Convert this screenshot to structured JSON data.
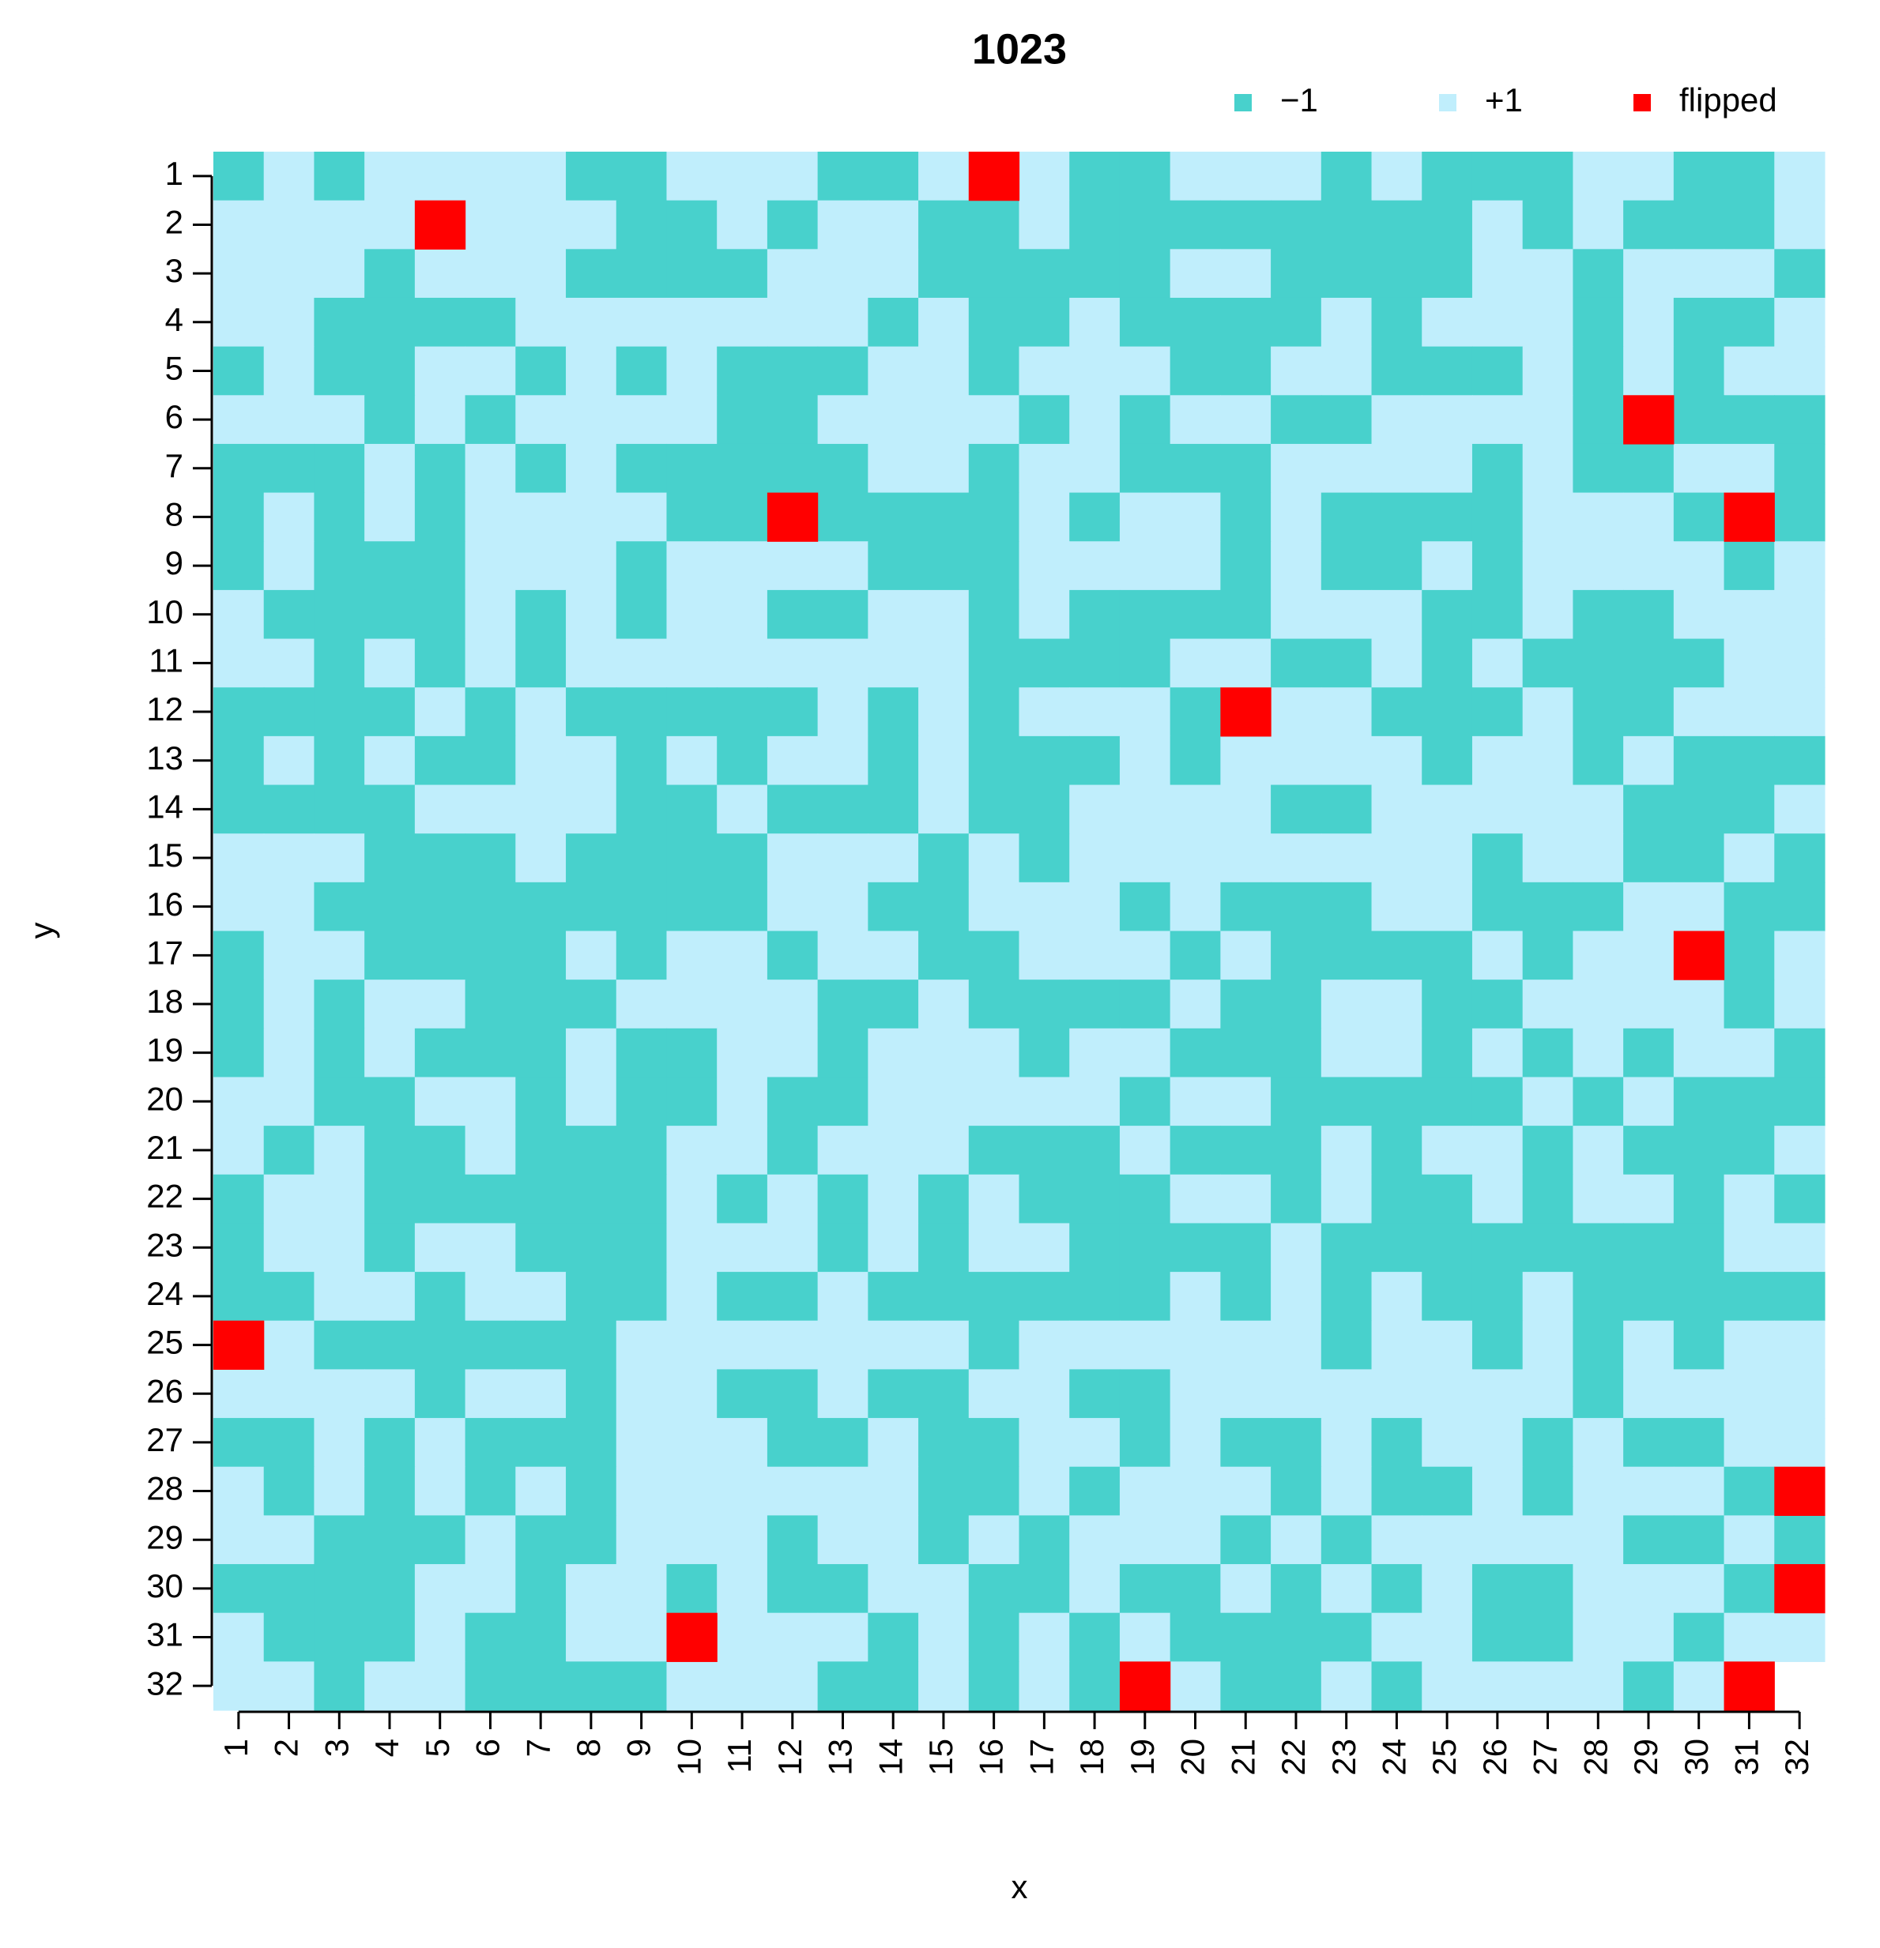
{
  "chart_data": {
    "type": "heatmap",
    "title": "1023",
    "x_label": "x",
    "y_label": "y",
    "x": [
      1,
      2,
      3,
      4,
      5,
      6,
      7,
      8,
      9,
      10,
      11,
      12,
      13,
      14,
      15,
      16,
      17,
      18,
      19,
      20,
      21,
      22,
      23,
      24,
      25,
      26,
      27,
      28,
      29,
      30,
      31,
      32
    ],
    "y": [
      1,
      2,
      3,
      4,
      5,
      6,
      7,
      8,
      9,
      10,
      11,
      12,
      13,
      14,
      15,
      16,
      17,
      18,
      19,
      20,
      21,
      22,
      23,
      24,
      25,
      26,
      27,
      28,
      29,
      30,
      31,
      32
    ],
    "xlim": [
      0.5,
      32.5
    ],
    "ylim": [
      32.5,
      0.5
    ],
    "xticks": [
      1,
      2,
      3,
      4,
      5,
      6,
      7,
      8,
      9,
      10,
      11,
      12,
      13,
      14,
      15,
      16,
      17,
      18,
      19,
      20,
      21,
      22,
      23,
      24,
      25,
      26,
      27,
      28,
      29,
      30,
      31,
      32
    ],
    "yticks": [
      1,
      2,
      3,
      4,
      5,
      6,
      7,
      8,
      9,
      10,
      11,
      12,
      13,
      14,
      15,
      16,
      17,
      18,
      19,
      20,
      21,
      22,
      23,
      24,
      25,
      26,
      27,
      28,
      29,
      30,
      31,
      32
    ],
    "levels": [
      {
        "name": "−1",
        "value": -1,
        "color": "#48D1CC"
      },
      {
        "name": "+1",
        "value": 1,
        "color": "#C0EEFC"
      },
      {
        "name": "flipped",
        "color": "#FF0000"
      }
    ],
    "flipped_cells": [
      [
        16,
        1
      ],
      [
        5,
        2
      ],
      [
        29,
        6
      ],
      [
        12,
        8
      ],
      [
        31,
        8
      ],
      [
        21,
        12
      ],
      [
        30,
        17
      ],
      [
        1,
        25
      ],
      [
        32,
        28
      ],
      [
        32,
        30
      ],
      [
        10,
        31
      ],
      [
        19,
        32
      ],
      [
        31,
        32
      ]
    ],
    "z": [
      [
        -1,
        1,
        -1,
        1,
        1,
        1,
        1,
        -1,
        -1,
        1,
        1,
        1,
        -1,
        -1,
        1,
        null,
        1,
        -1,
        -1,
        1,
        1,
        1,
        -1,
        1,
        -1,
        -1,
        -1,
        1,
        1,
        -1,
        -1,
        1
      ],
      [
        1,
        1,
        1,
        1,
        null,
        1,
        1,
        1,
        -1,
        -1,
        1,
        -1,
        1,
        1,
        -1,
        -1,
        1,
        -1,
        -1,
        -1,
        -1,
        -1,
        -1,
        -1,
        -1,
        1,
        -1,
        1,
        -1,
        -1,
        -1,
        1
      ],
      [
        1,
        1,
        1,
        -1,
        1,
        1,
        1,
        -1,
        -1,
        -1,
        -1,
        1,
        1,
        1,
        -1,
        -1,
        -1,
        -1,
        -1,
        1,
        1,
        -1,
        -1,
        -1,
        -1,
        1,
        1,
        -1,
        1,
        1,
        1,
        -1
      ],
      [
        1,
        1,
        -1,
        -1,
        -1,
        -1,
        1,
        1,
        1,
        1,
        1,
        1,
        1,
        -1,
        1,
        -1,
        -1,
        1,
        -1,
        -1,
        -1,
        -1,
        1,
        -1,
        1,
        1,
        1,
        -1,
        1,
        -1,
        -1,
        1
      ],
      [
        -1,
        1,
        -1,
        -1,
        1,
        1,
        -1,
        1,
        -1,
        1,
        -1,
        -1,
        -1,
        1,
        1,
        -1,
        1,
        1,
        1,
        -1,
        -1,
        1,
        1,
        -1,
        -1,
        -1,
        1,
        -1,
        1,
        -1,
        1,
        1
      ],
      [
        1,
        1,
        1,
        -1,
        1,
        -1,
        1,
        1,
        1,
        1,
        -1,
        -1,
        1,
        1,
        1,
        1,
        -1,
        1,
        -1,
        1,
        1,
        -1,
        -1,
        1,
        1,
        1,
        1,
        -1,
        null,
        -1,
        -1,
        -1
      ],
      [
        -1,
        -1,
        -1,
        1,
        -1,
        1,
        -1,
        1,
        -1,
        -1,
        -1,
        -1,
        -1,
        1,
        1,
        -1,
        1,
        1,
        -1,
        -1,
        -1,
        1,
        1,
        1,
        1,
        -1,
        1,
        -1,
        -1,
        1,
        1,
        -1
      ],
      [
        -1,
        1,
        -1,
        1,
        -1,
        1,
        1,
        1,
        1,
        -1,
        -1,
        null,
        -1,
        -1,
        -1,
        -1,
        1,
        -1,
        1,
        1,
        -1,
        1,
        -1,
        -1,
        -1,
        -1,
        1,
        1,
        1,
        -1,
        null,
        -1
      ],
      [
        -1,
        1,
        -1,
        -1,
        -1,
        1,
        1,
        1,
        -1,
        1,
        1,
        1,
        1,
        -1,
        -1,
        -1,
        1,
        1,
        1,
        1,
        -1,
        1,
        -1,
        -1,
        1,
        -1,
        1,
        1,
        1,
        1,
        -1,
        1
      ],
      [
        1,
        -1,
        -1,
        -1,
        -1,
        1,
        -1,
        1,
        -1,
        1,
        1,
        -1,
        -1,
        1,
        1,
        -1,
        1,
        -1,
        -1,
        -1,
        -1,
        1,
        1,
        1,
        -1,
        -1,
        1,
        -1,
        -1,
        1,
        1,
        1
      ],
      [
        1,
        1,
        -1,
        1,
        -1,
        1,
        -1,
        1,
        1,
        1,
        1,
        1,
        1,
        1,
        1,
        -1,
        -1,
        -1,
        -1,
        1,
        1,
        -1,
        -1,
        1,
        -1,
        1,
        -1,
        -1,
        -1,
        -1,
        1,
        1
      ],
      [
        -1,
        -1,
        -1,
        -1,
        1,
        -1,
        1,
        -1,
        -1,
        -1,
        -1,
        -1,
        1,
        -1,
        1,
        -1,
        1,
        1,
        1,
        -1,
        null,
        1,
        1,
        -1,
        -1,
        -1,
        1,
        -1,
        -1,
        1,
        1,
        1
      ],
      [
        -1,
        1,
        -1,
        1,
        -1,
        -1,
        1,
        1,
        -1,
        1,
        -1,
        1,
        1,
        -1,
        1,
        -1,
        -1,
        -1,
        1,
        -1,
        1,
        1,
        1,
        1,
        -1,
        1,
        1,
        -1,
        1,
        -1,
        -1,
        -1
      ],
      [
        -1,
        -1,
        -1,
        -1,
        1,
        1,
        1,
        1,
        -1,
        -1,
        1,
        -1,
        -1,
        -1,
        1,
        -1,
        -1,
        1,
        1,
        1,
        1,
        -1,
        -1,
        1,
        1,
        1,
        1,
        1,
        -1,
        -1,
        -1,
        1
      ],
      [
        1,
        1,
        1,
        -1,
        -1,
        -1,
        1,
        -1,
        -1,
        -1,
        -1,
        1,
        1,
        1,
        -1,
        1,
        -1,
        1,
        1,
        1,
        1,
        1,
        1,
        1,
        1,
        -1,
        1,
        1,
        -1,
        -1,
        1,
        -1
      ],
      [
        1,
        1,
        -1,
        -1,
        -1,
        -1,
        -1,
        -1,
        -1,
        -1,
        -1,
        1,
        1,
        -1,
        -1,
        1,
        1,
        1,
        -1,
        1,
        -1,
        -1,
        -1,
        1,
        1,
        -1,
        -1,
        -1,
        1,
        1,
        -1,
        -1
      ],
      [
        -1,
        1,
        1,
        -1,
        -1,
        -1,
        -1,
        1,
        -1,
        1,
        1,
        -1,
        1,
        1,
        -1,
        -1,
        1,
        1,
        1,
        -1,
        1,
        -1,
        -1,
        -1,
        -1,
        1,
        -1,
        1,
        1,
        null,
        -1,
        1
      ],
      [
        -1,
        1,
        -1,
        1,
        1,
        -1,
        -1,
        -1,
        1,
        1,
        1,
        1,
        -1,
        -1,
        1,
        -1,
        -1,
        -1,
        -1,
        1,
        -1,
        -1,
        1,
        1,
        -1,
        -1,
        1,
        1,
        1,
        1,
        -1,
        1
      ],
      [
        -1,
        1,
        -1,
        1,
        -1,
        -1,
        -1,
        1,
        -1,
        -1,
        1,
        1,
        -1,
        1,
        1,
        1,
        -1,
        1,
        1,
        -1,
        -1,
        -1,
        1,
        1,
        -1,
        1,
        -1,
        1,
        -1,
        1,
        1,
        -1
      ],
      [
        1,
        1,
        -1,
        -1,
        1,
        1,
        -1,
        1,
        -1,
        -1,
        1,
        -1,
        -1,
        1,
        1,
        1,
        1,
        1,
        -1,
        1,
        1,
        -1,
        -1,
        -1,
        -1,
        -1,
        1,
        -1,
        1,
        -1,
        -1,
        -1
      ],
      [
        1,
        -1,
        1,
        -1,
        -1,
        1,
        -1,
        -1,
        -1,
        1,
        1,
        -1,
        1,
        1,
        1,
        -1,
        -1,
        -1,
        1,
        -1,
        -1,
        -1,
        1,
        -1,
        1,
        1,
        -1,
        1,
        -1,
        -1,
        -1,
        1
      ],
      [
        -1,
        1,
        1,
        -1,
        -1,
        -1,
        -1,
        -1,
        -1,
        1,
        -1,
        1,
        -1,
        1,
        -1,
        1,
        -1,
        -1,
        -1,
        1,
        1,
        -1,
        1,
        -1,
        -1,
        1,
        -1,
        1,
        1,
        -1,
        1,
        -1
      ],
      [
        -1,
        1,
        1,
        -1,
        1,
        1,
        -1,
        -1,
        -1,
        1,
        1,
        1,
        -1,
        1,
        -1,
        1,
        1,
        -1,
        -1,
        -1,
        -1,
        1,
        -1,
        -1,
        -1,
        -1,
        -1,
        -1,
        -1,
        -1,
        1,
        1
      ],
      [
        -1,
        -1,
        1,
        1,
        -1,
        1,
        1,
        -1,
        -1,
        1,
        -1,
        -1,
        1,
        -1,
        -1,
        -1,
        -1,
        -1,
        -1,
        1,
        -1,
        1,
        -1,
        1,
        -1,
        -1,
        1,
        -1,
        -1,
        -1,
        -1,
        -1
      ],
      [
        null,
        1,
        -1,
        -1,
        -1,
        -1,
        -1,
        -1,
        1,
        1,
        1,
        1,
        1,
        1,
        1,
        -1,
        1,
        1,
        1,
        1,
        1,
        1,
        -1,
        1,
        1,
        -1,
        1,
        -1,
        1,
        -1,
        1,
        1
      ],
      [
        1,
        1,
        1,
        1,
        -1,
        1,
        1,
        -1,
        1,
        1,
        -1,
        -1,
        1,
        -1,
        -1,
        1,
        1,
        -1,
        -1,
        1,
        1,
        1,
        1,
        1,
        1,
        1,
        1,
        -1,
        1,
        1,
        1,
        1
      ],
      [
        -1,
        -1,
        1,
        -1,
        1,
        -1,
        -1,
        -1,
        1,
        1,
        1,
        -1,
        -1,
        1,
        -1,
        -1,
        1,
        1,
        -1,
        1,
        -1,
        -1,
        1,
        -1,
        1,
        1,
        -1,
        1,
        -1,
        -1,
        1,
        1
      ],
      [
        1,
        -1,
        1,
        -1,
        1,
        -1,
        1,
        -1,
        1,
        1,
        1,
        1,
        1,
        1,
        -1,
        -1,
        1,
        -1,
        1,
        1,
        1,
        -1,
        1,
        -1,
        -1,
        1,
        -1,
        1,
        1,
        1,
        -1,
        null
      ],
      [
        1,
        1,
        -1,
        -1,
        -1,
        1,
        -1,
        -1,
        1,
        1,
        1,
        -1,
        1,
        1,
        -1,
        1,
        -1,
        1,
        1,
        1,
        -1,
        1,
        -1,
        1,
        1,
        1,
        1,
        1,
        -1,
        -1,
        1,
        -1
      ],
      [
        -1,
        -1,
        -1,
        -1,
        1,
        1,
        -1,
        1,
        1,
        -1,
        1,
        -1,
        -1,
        1,
        1,
        -1,
        -1,
        1,
        -1,
        -1,
        1,
        -1,
        1,
        -1,
        1,
        -1,
        -1,
        1,
        1,
        1,
        -1,
        null
      ],
      [
        1,
        -1,
        -1,
        -1,
        1,
        -1,
        -1,
        1,
        1,
        null,
        1,
        1,
        1,
        -1,
        1,
        -1,
        1,
        -1,
        1,
        -1,
        -1,
        -1,
        -1,
        1,
        1,
        -1,
        -1,
        1,
        1,
        -1,
        1,
        1
      ],
      [
        1,
        1,
        -1,
        1,
        1,
        -1,
        -1,
        -1,
        -1,
        1,
        1,
        1,
        -1,
        -1,
        1,
        -1,
        1,
        -1,
        null,
        1,
        -1,
        -1,
        1,
        -1,
        1,
        1,
        1,
        1,
        -1,
        1,
        null,
        null
      ]
    ]
  }
}
